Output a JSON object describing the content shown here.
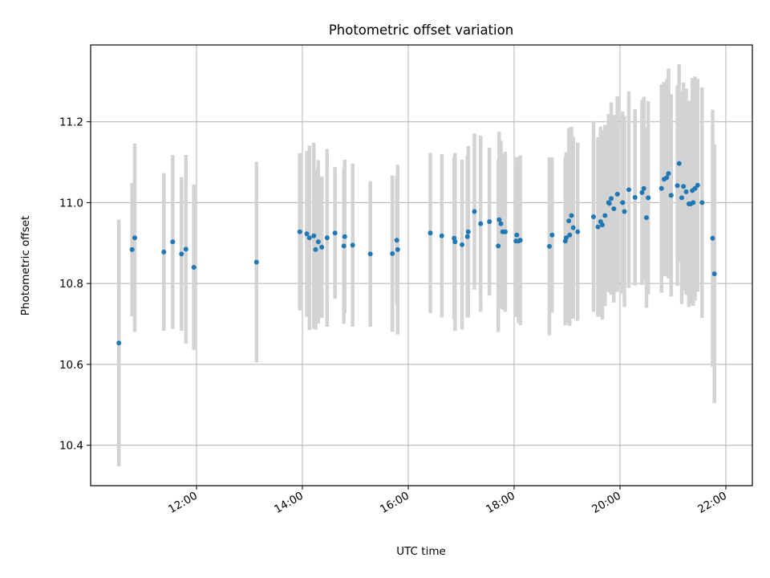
{
  "chart_data": {
    "type": "scatter",
    "title": "Photometric offset variation",
    "xlabel": "UTC time",
    "ylabel": "Photometric offset",
    "xlim_hours": [
      10.0,
      22.5
    ],
    "ylim": [
      10.3,
      11.39
    ],
    "x_ticks": [
      {
        "hour": 12,
        "label": "12:00"
      },
      {
        "hour": 14,
        "label": "14:00"
      },
      {
        "hour": 16,
        "label": "16:00"
      },
      {
        "hour": 18,
        "label": "18:00"
      },
      {
        "hour": 20,
        "label": "20:00"
      },
      {
        "hour": 22,
        "label": "22:00"
      }
    ],
    "y_ticks": [
      {
        "value": 10.4,
        "label": "10.4"
      },
      {
        "value": 10.6,
        "label": "10.6"
      },
      {
        "value": 10.8,
        "label": "10.8"
      },
      {
        "value": 11.0,
        "label": "11.0"
      },
      {
        "value": 11.2,
        "label": "11.2"
      }
    ],
    "grid": true,
    "colors": {
      "marker": "#1f77b4",
      "errorbar": "#d3d3d3"
    },
    "series": [
      {
        "x": [
          "10:32",
          "10:47",
          "10:50",
          "11:23",
          "11:33",
          "11:43",
          "11:48",
          "11:57",
          "13:08",
          "13:57",
          "14:05",
          "14:08",
          "14:13",
          "14:15",
          "14:18",
          "14:22",
          "14:28",
          "14:37",
          "14:47",
          "14:48",
          "14:57",
          "15:17",
          "15:42",
          "15:47",
          "15:48",
          "16:25",
          "16:38",
          "16:52",
          "16:53",
          "17:01",
          "17:07",
          "17:08",
          "17:15",
          "17:22",
          "17:32",
          "17:42",
          "17:43",
          "17:45",
          "17:47",
          "17:50",
          "18:02",
          "18:03",
          "18:05",
          "18:07",
          "18:40",
          "18:43",
          "18:58",
          "18:59",
          "19:02",
          "19:03",
          "19:05",
          "19:07",
          "19:12",
          "19:30",
          "19:35",
          "19:38",
          "19:40",
          "19:43",
          "19:47",
          "19:48",
          "19:50",
          "19:53",
          "19:57",
          "20:03",
          "20:05",
          "20:10",
          "20:17",
          "20:25",
          "20:27",
          "20:30",
          "20:32",
          "20:47",
          "20:50",
          "20:53",
          "20:55",
          "20:58",
          "21:05",
          "21:07",
          "21:10",
          "21:12",
          "21:15",
          "21:18",
          "21:20",
          "21:22",
          "21:23",
          "21:25",
          "21:28",
          "21:33",
          "21:45",
          "21:47"
        ],
        "y": [
          10.653,
          10.884,
          10.913,
          10.878,
          10.903,
          10.873,
          10.885,
          10.84,
          10.853,
          10.928,
          10.923,
          10.913,
          10.918,
          10.884,
          10.903,
          10.89,
          10.913,
          10.925,
          10.893,
          10.916,
          10.895,
          10.873,
          10.874,
          10.907,
          10.884,
          10.925,
          10.918,
          10.912,
          10.903,
          10.896,
          10.916,
          10.928,
          10.978,
          10.948,
          10.953,
          10.893,
          10.958,
          10.948,
          10.928,
          10.928,
          10.905,
          10.92,
          10.905,
          10.907,
          10.892,
          10.92,
          10.905,
          10.913,
          10.955,
          10.92,
          10.968,
          10.938,
          10.928,
          10.965,
          10.94,
          10.953,
          10.945,
          10.968,
          11.0,
          10.998,
          11.01,
          10.985,
          11.021,
          11.0,
          10.978,
          11.032,
          11.013,
          11.025,
          11.035,
          10.963,
          11.012,
          11.035,
          11.058,
          11.062,
          11.072,
          11.018,
          11.042,
          11.097,
          11.012,
          11.04,
          11.027,
          10.997,
          10.997,
          11.03,
          11.0,
          11.035,
          11.043,
          11.0,
          10.912,
          10.824
        ],
        "yerr": [
          0.305,
          0.165,
          0.233,
          0.195,
          0.215,
          0.19,
          0.233,
          0.205,
          0.248,
          0.195,
          0.205,
          0.228,
          0.23,
          0.198,
          0.202,
          0.175,
          0.22,
          0.163,
          0.193,
          0.19,
          0.202,
          0.18,
          0.193,
          0.158,
          0.21,
          0.198,
          0.202,
          0.2,
          0.22,
          0.21,
          0.2,
          0.212,
          0.193,
          0.218,
          0.183,
          0.213,
          0.217,
          0.205,
          0.193,
          0.198,
          0.188,
          0.193,
          0.203,
          0.21,
          0.22,
          0.192,
          0.208,
          0.212,
          0.23,
          0.225,
          0.22,
          0.225,
          0.22,
          0.235,
          0.222,
          0.235,
          0.234,
          0.224,
          0.219,
          0.22,
          0.238,
          0.232,
          0.242,
          0.225,
          0.236,
          0.243,
          0.218,
          0.229,
          0.227,
          0.223,
          0.239,
          0.258,
          0.24,
          0.244,
          0.26,
          0.25,
          0.248,
          0.245,
          0.263,
          0.257,
          0.255,
          0.255,
          0.25,
          0.278,
          0.255,
          0.277,
          0.263,
          0.285,
          0.318,
          0.32
        ]
      }
    ]
  }
}
